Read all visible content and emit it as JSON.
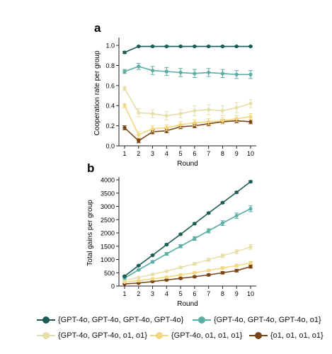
{
  "chart_data": [
    {
      "type": "line",
      "panel_label": "a",
      "xlabel": "Round",
      "ylabel": "Cooperation rate per group",
      "x": [
        1,
        2,
        3,
        4,
        5,
        6,
        7,
        8,
        9,
        10
      ],
      "xticks": [
        "1",
        "2",
        "3",
        "4",
        "5",
        "6",
        "7",
        "8",
        "9",
        "10"
      ],
      "ylim": [
        0,
        1.05
      ],
      "yticks": [
        "0.0",
        "0.2",
        "0.4",
        "0.6",
        "0.8",
        "1.0"
      ],
      "series": [
        {
          "name": "{GPT-4o, GPT-4o, GPT-4o, GPT-4o}",
          "color": "#1a5c52",
          "values": [
            0.93,
            0.99,
            0.99,
            0.99,
            0.99,
            0.99,
            0.99,
            0.99,
            0.99,
            0.99
          ],
          "errors": [
            0.01,
            0.005,
            0.005,
            0.005,
            0.005,
            0.005,
            0.005,
            0.005,
            0.005,
            0.005
          ]
        },
        {
          "name": "{GPT-4o, GPT-4o, GPT-4o, o1}",
          "color": "#5aaea3",
          "values": [
            0.74,
            0.79,
            0.75,
            0.74,
            0.73,
            0.72,
            0.73,
            0.72,
            0.71,
            0.71
          ],
          "errors": [
            0.02,
            0.03,
            0.04,
            0.04,
            0.04,
            0.04,
            0.04,
            0.04,
            0.04,
            0.04
          ]
        },
        {
          "name": "{GPT-4o, GPT-4o, o1, o1}",
          "color": "#e6e0a8",
          "values": [
            0.57,
            0.33,
            0.32,
            0.3,
            0.32,
            0.35,
            0.36,
            0.35,
            0.38,
            0.42
          ],
          "errors": [
            0.02,
            0.04,
            0.04,
            0.04,
            0.04,
            0.05,
            0.05,
            0.05,
            0.05,
            0.04
          ]
        },
        {
          "name": "{GPT-4o, o1, o1, o1}",
          "color": "#f2d77e",
          "values": [
            0.4,
            0.11,
            0.17,
            0.18,
            0.21,
            0.23,
            0.24,
            0.25,
            0.27,
            0.29
          ],
          "errors": [
            0.02,
            0.03,
            0.03,
            0.03,
            0.03,
            0.03,
            0.03,
            0.03,
            0.03,
            0.03
          ]
        },
        {
          "name": "{o1, o1, o1, o1}",
          "color": "#7a4516",
          "values": [
            0.18,
            0.05,
            0.14,
            0.15,
            0.19,
            0.2,
            0.22,
            0.24,
            0.25,
            0.24
          ],
          "errors": [
            0.02,
            0.02,
            0.02,
            0.02,
            0.02,
            0.02,
            0.02,
            0.02,
            0.02,
            0.02
          ]
        }
      ]
    },
    {
      "type": "line",
      "panel_label": "b",
      "xlabel": "Round",
      "ylabel": "Total gains per group",
      "x": [
        1,
        2,
        3,
        4,
        5,
        6,
        7,
        8,
        9,
        10
      ],
      "xticks": [
        "1",
        "2",
        "3",
        "4",
        "5",
        "6",
        "7",
        "8",
        "9",
        "10"
      ],
      "ylim": [
        0,
        4000
      ],
      "yticks": [
        "0",
        "500",
        "1000",
        "1500",
        "2000",
        "2500",
        "3000",
        "3500",
        "4000"
      ],
      "series": [
        {
          "name": "{GPT-4o, GPT-4o, GPT-4o, GPT-4o}",
          "color": "#1a5c52",
          "values": [
            370,
            770,
            1160,
            1560,
            1950,
            2350,
            2750,
            3140,
            3530,
            3930
          ],
          "errors": [
            20,
            20,
            25,
            25,
            25,
            30,
            30,
            30,
            35,
            35
          ]
        },
        {
          "name": "{GPT-4o, GPT-4o, GPT-4o, o1}",
          "color": "#5aaea3",
          "values": [
            300,
            610,
            910,
            1210,
            1500,
            1790,
            2080,
            2370,
            2650,
            2910
          ],
          "errors": [
            20,
            30,
            40,
            50,
            60,
            70,
            80,
            90,
            100,
            110
          ]
        },
        {
          "name": "{GPT-4o, GPT-4o, o1, o1}",
          "color": "#e6e0a8",
          "values": [
            210,
            320,
            440,
            560,
            700,
            840,
            990,
            1140,
            1300,
            1470
          ],
          "errors": [
            10,
            20,
            25,
            30,
            40,
            50,
            60,
            70,
            80,
            90
          ]
        },
        {
          "name": "{GPT-4o, o1, o1, o1}",
          "color": "#f2d77e",
          "values": [
            150,
            200,
            270,
            340,
            420,
            500,
            590,
            680,
            770,
            870
          ],
          "errors": [
            10,
            15,
            20,
            25,
            30,
            35,
            40,
            45,
            50,
            55
          ]
        },
        {
          "name": "{o1, o1, o1, o1}",
          "color": "#7a4516",
          "values": [
            80,
            110,
            170,
            230,
            290,
            350,
            420,
            500,
            580,
            730
          ],
          "errors": [
            10,
            15,
            20,
            25,
            30,
            35,
            40,
            45,
            50,
            55
          ]
        }
      ]
    }
  ]
}
